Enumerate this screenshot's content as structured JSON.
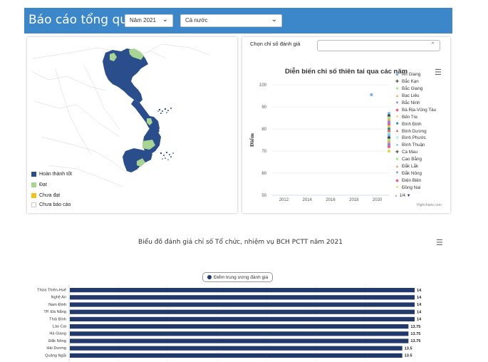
{
  "header": {
    "title": "Báo cáo tổng quan",
    "year_select": "Năm 2021",
    "region_select": "Cả nước"
  },
  "map": {
    "legend": [
      {
        "label": "Hoàn thành tốt",
        "color": "#2a4d8c"
      },
      {
        "label": "Đạt",
        "color": "#a8d494"
      },
      {
        "label": "Chưa đạt",
        "color": "#f1c21b"
      },
      {
        "label": "Chưa báo cáo",
        "color": "#ffffff"
      }
    ]
  },
  "line_panel": {
    "select_label": "Chọn chỉ số đánh giá",
    "menu_icon": "hamburger-icon",
    "pager": "1/4",
    "credit": "Highcharts.com"
  },
  "chart_data": [
    {
      "type": "scatter",
      "title": "Diễn biến chỉ số thiên tai qua các năm",
      "xlabel": "",
      "ylabel": "Điểm",
      "xlim": [
        2011,
        2021
      ],
      "ylim": [
        50,
        100
      ],
      "x_ticks": [
        "2012",
        "2014",
        "2016",
        "2018",
        "2020"
      ],
      "y_ticks": [
        "50",
        "60",
        "70",
        "80",
        "90",
        "100"
      ],
      "legend_position": "right",
      "series": [
        {
          "name": "An Giang",
          "color": "#7cb5ec",
          "x": [
            2021
          ],
          "y": [
            87
          ]
        },
        {
          "name": "Bắc Kạn",
          "color": "#434348",
          "x": [
            2021
          ],
          "y": [
            86
          ]
        },
        {
          "name": "Bắc Giang",
          "color": "#90ed7d",
          "x": [
            2021
          ],
          "y": [
            85
          ]
        },
        {
          "name": "Bạc Liêu",
          "color": "#f7a35c",
          "x": [
            2021
          ],
          "y": [
            84
          ]
        },
        {
          "name": "Bắc Ninh",
          "color": "#8085e9",
          "x": [
            2021
          ],
          "y": [
            83
          ]
        },
        {
          "name": "Bà Rịa-Vũng Tàu",
          "color": "#f15c80",
          "x": [
            2021
          ],
          "y": [
            82
          ]
        },
        {
          "name": "Bến Tre",
          "color": "#e4d354",
          "x": [
            2021
          ],
          "y": [
            81
          ]
        },
        {
          "name": "Bình Định",
          "color": "#2b908f",
          "x": [
            2021
          ],
          "y": [
            80
          ]
        },
        {
          "name": "Bình Dương",
          "color": "#f45b5b",
          "x": [
            2021
          ],
          "y": [
            79
          ]
        },
        {
          "name": "Bình Phước",
          "color": "#91e8e1",
          "x": [
            2021
          ],
          "y": [
            78
          ]
        },
        {
          "name": "Bình Thuận",
          "color": "#7cb5ec",
          "x": [
            2019.5,
            2021
          ],
          "y": [
            95.5,
            77
          ]
        },
        {
          "name": "Cà Mau",
          "color": "#434348",
          "x": [
            2021
          ],
          "y": [
            76
          ]
        },
        {
          "name": "Cao Bằng",
          "color": "#90ed7d",
          "x": [
            2021
          ],
          "y": [
            75
          ]
        },
        {
          "name": "Đắk Lắk",
          "color": "#f7a35c",
          "x": [
            2021
          ],
          "y": [
            74
          ]
        },
        {
          "name": "Đắk Nông",
          "color": "#8085e9",
          "x": [
            2021
          ],
          "y": [
            73
          ]
        },
        {
          "name": "Điện Biên",
          "color": "#f15c80",
          "x": [
            2021
          ],
          "y": [
            72
          ]
        },
        {
          "name": "Đồng Nai",
          "color": "#e4d354",
          "x": [
            2021
          ],
          "y": [
            70
          ]
        }
      ]
    },
    {
      "type": "bar",
      "orientation": "horizontal",
      "title": "Biểu đồ đánh giá chỉ số Tổ chức, nhiệm vụ BCH PCTT năm 2021",
      "legend_position": "top",
      "series": [
        {
          "name": "Điểm trung ương đánh giá",
          "color": "#223a6b"
        }
      ],
      "categories": [
        "Thừa Thiên-Huế",
        "Nghệ An",
        "Nam Định",
        "TP. Đà Nẵng",
        "Thái Bình",
        "Lào Cai",
        "Hà Giang",
        "Đắk Nông",
        "Hải Dương",
        "Quảng Ngãi"
      ],
      "values": [
        14,
        14,
        14,
        14,
        14,
        13.75,
        13.75,
        13.75,
        13.5,
        13.5
      ],
      "value_labels": [
        "14",
        "14",
        "14",
        "14",
        "14",
        "13.75",
        "13.75",
        "13.75",
        "13.5",
        "13.5"
      ],
      "xlim": [
        0,
        14
      ]
    }
  ]
}
